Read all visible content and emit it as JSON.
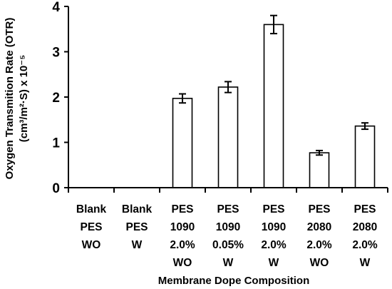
{
  "chart_data": {
    "type": "bar",
    "categories": [
      [
        "Blank",
        "PES",
        "WO"
      ],
      [
        "Blank",
        "PES",
        "W"
      ],
      [
        "PES",
        "1090",
        "2.0%",
        "WO"
      ],
      [
        "PES",
        "1090",
        "0.05%",
        "W"
      ],
      [
        "PES",
        "1090",
        "2.0%",
        "W"
      ],
      [
        "PES",
        "2080",
        "2.0%",
        "WO"
      ],
      [
        "PES",
        "2080",
        "2.0%",
        "W"
      ]
    ],
    "values": [
      0,
      0,
      1.97,
      2.22,
      3.6,
      0.77,
      1.36
    ],
    "errors": [
      0,
      0,
      0.1,
      0.12,
      0.2,
      0.05,
      0.07
    ],
    "xlabel": "Membrane Dope Composition",
    "ylabel_lines": [
      "Oxygen Transmition Rate (OTR)",
      "(cm³/m²·S) x 10⁻⁵"
    ],
    "yticks": [
      "0",
      "1",
      "2",
      "3",
      "4"
    ],
    "ylim": [
      0,
      4
    ],
    "grid": false,
    "legend": "none",
    "bar_fill": "#ffffff",
    "bar_stroke": "#000000"
  }
}
